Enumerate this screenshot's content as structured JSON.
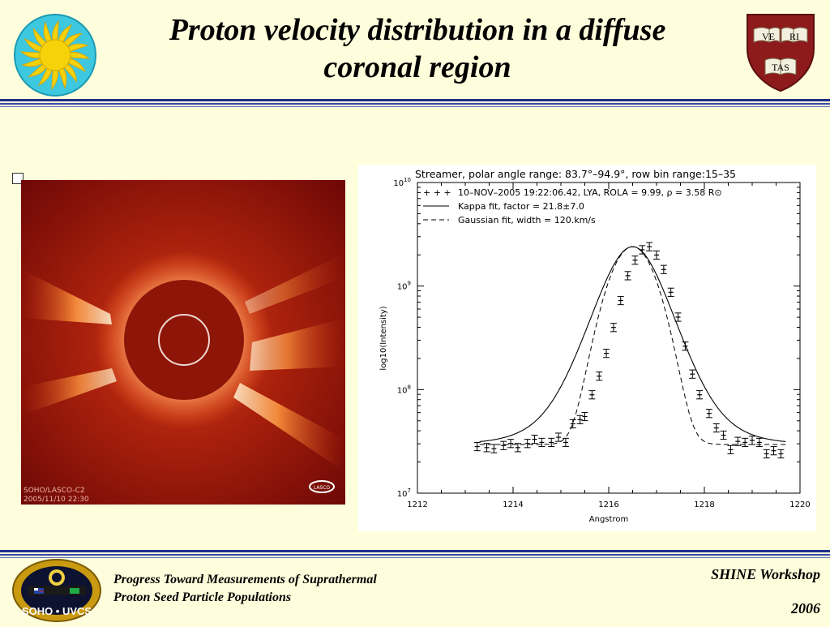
{
  "slide": {
    "title_line1": "Proton velocity distribution in a diffuse",
    "title_line2": "coronal region"
  },
  "logos": {
    "sun_logo": "sun-logo",
    "shield_logo": "harvard-veritas-shield",
    "shield_words": [
      "VE",
      "RI",
      "TAS"
    ],
    "footer_logo": "soho-uvcs-mission-patch",
    "footer_logo_text": "SOHO • UVCS"
  },
  "coronagraph": {
    "caption_line1": "SOHO/LASCO-C2",
    "caption_line2": "2005/11/10 22:30",
    "corner_badge": "LASCO"
  },
  "chart_data": {
    "type": "scatter",
    "title": "Streamer, polar angle range: 83.7°–94.9°, row bin range:15–35",
    "xlabel": "Angstrom",
    "ylabel": "log10(Intensity)",
    "xlim": [
      1212,
      1220
    ],
    "ylim_log10": [
      7,
      10
    ],
    "x_ticks": [
      "1212",
      "1214",
      "1216",
      "1218",
      "1220"
    ],
    "y_ticks": [
      "10^7",
      "10^8",
      "10^9",
      "10^10"
    ],
    "legend": [
      {
        "marker": "+ + +",
        "label": "10–NOV–2005 19:22:06.42, LYA, ROLA = 9.99, ρ = 3.58 R⊙"
      },
      {
        "marker": "solid",
        "label": "Kappa fit, factor = 21.8±7.0"
      },
      {
        "marker": "dashed",
        "label": "Gaussian fit, width = 120.km/s"
      }
    ],
    "legend_position": "top-left",
    "series": [
      {
        "name": "10–NOV–2005 19:22:06.42, LYA, ROLA = 9.99, ρ = 3.58 R⊙",
        "style": "points-with-error-bars",
        "x": [
          1213.25,
          1213.45,
          1213.6,
          1213.8,
          1213.95,
          1214.1,
          1214.3,
          1214.45,
          1214.6,
          1214.8,
          1214.95,
          1215.1,
          1215.25,
          1215.4,
          1215.5,
          1215.65,
          1215.8,
          1215.95,
          1216.1,
          1216.25,
          1216.4,
          1216.55,
          1216.7,
          1216.85,
          1217.0,
          1217.15,
          1217.3,
          1217.45,
          1217.6,
          1217.75,
          1217.9,
          1218.1,
          1218.25,
          1218.4,
          1218.55,
          1218.7,
          1218.85,
          1219.0,
          1219.15,
          1219.3,
          1219.45,
          1219.6
        ],
        "log10_y": [
          7.45,
          7.44,
          7.43,
          7.46,
          7.48,
          7.44,
          7.48,
          7.52,
          7.49,
          7.49,
          7.54,
          7.49,
          7.67,
          7.71,
          7.74,
          7.95,
          8.13,
          8.35,
          8.6,
          8.86,
          9.1,
          9.25,
          9.35,
          9.38,
          9.3,
          9.16,
          8.94,
          8.7,
          8.42,
          8.15,
          7.95,
          7.77,
          7.63,
          7.56,
          7.42,
          7.5,
          7.49,
          7.51,
          7.49,
          7.38,
          7.41,
          7.38
        ],
        "y_err_log10": 0.04
      },
      {
        "name": "Kappa fit, factor = 21.8±7.0",
        "style": "solid-line",
        "baseline_log10": 7.47,
        "peak_log10": 9.38,
        "center": 1216.5,
        "width": 0.42
      },
      {
        "name": "Gaussian fit, width = 120.km/s",
        "style": "dashed-line",
        "baseline_log10": 7.47,
        "peak_log10": 9.38,
        "center": 1216.5,
        "width": 0.4
      }
    ]
  },
  "footer": {
    "left_line1": "Progress Toward Measurements of Suprathermal",
    "left_line2": "Proton Seed Particle Populations",
    "right_line1": "SHINE Workshop",
    "right_line2": "2006"
  }
}
